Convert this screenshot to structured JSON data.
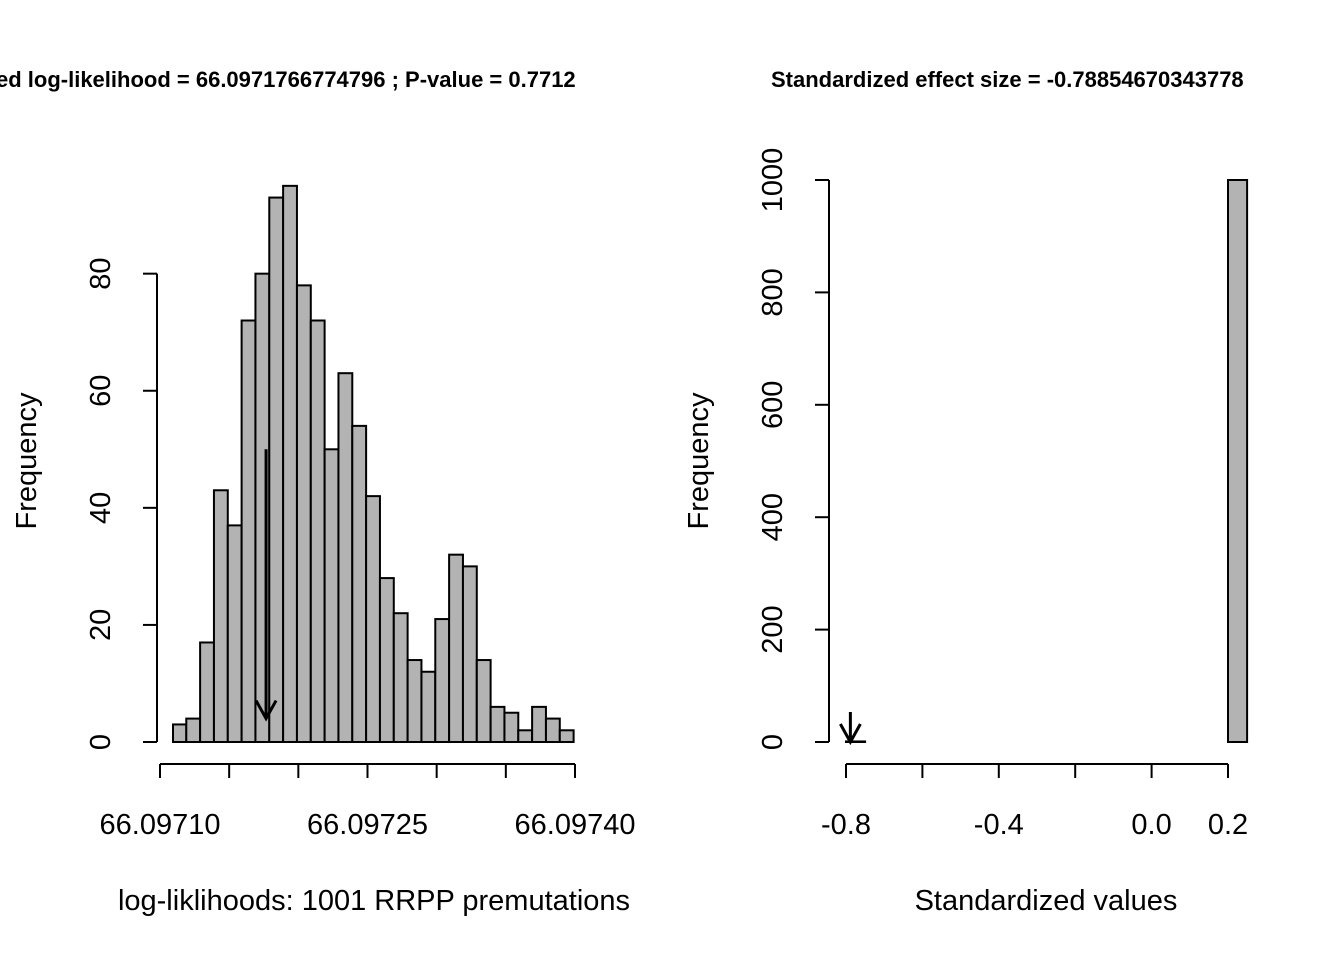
{
  "colors": {
    "bar_fill": "#b3b3b3",
    "stroke": "#000000",
    "background": "#ffffff"
  },
  "chart_data": [
    {
      "type": "bar",
      "title": "ed log-likelihood = 66.0971766774796 ; P-value = 0.7712",
      "xlabel": "log-liklihoods: 1001 RRPP premutations",
      "ylabel": "Frequency",
      "xlim": [
        66.0971,
        66.0974
      ],
      "ylim": [
        0,
        96
      ],
      "x_ticks": [
        66.0971,
        66.09715,
        66.0972,
        66.09725,
        66.0973,
        66.09735,
        66.0974
      ],
      "x_tick_labels": [
        "66.09710",
        "",
        "",
        "66.09725",
        "",
        "",
        "66.09740"
      ],
      "y_ticks": [
        0,
        20,
        40,
        60,
        80
      ],
      "bin_start": 66.097109,
      "bin_width": 1e-05,
      "values": [
        3,
        4,
        17,
        43,
        37,
        72,
        80,
        93,
        95,
        78,
        72,
        50,
        63,
        54,
        42,
        28,
        22,
        14,
        12,
        21,
        32,
        30,
        14,
        6,
        5,
        2,
        6,
        4,
        2
      ],
      "arrow": {
        "x": 66.0971766774796,
        "y_from": 50,
        "y_to": 4
      },
      "grid": false
    },
    {
      "type": "bar",
      "title": "Standardized effect size = -0.78854670343778",
      "xlabel": "Standardized values",
      "ylabel": "Frequency",
      "xlim": [
        -0.8,
        0.2
      ],
      "ylim": [
        0,
        1000
      ],
      "x_ticks": [
        -0.8,
        -0.6,
        -0.4,
        -0.2,
        0.0,
        0.2
      ],
      "x_tick_labels": [
        "-0.8",
        "",
        "-0.4",
        "",
        "0.0",
        "0.2"
      ],
      "y_ticks": [
        0,
        200,
        400,
        600,
        800,
        1000
      ],
      "bin_start": -0.8,
      "bin_width": 0.05,
      "values": [
        1,
        0,
        0,
        0,
        0,
        0,
        0,
        0,
        0,
        0,
        0,
        0,
        0,
        0,
        0,
        0,
        0,
        0,
        0,
        0,
        1000
      ],
      "arrow": {
        "x": -0.78854670343778,
        "y_from": 50,
        "y_to": 0
      },
      "grid": false
    }
  ]
}
